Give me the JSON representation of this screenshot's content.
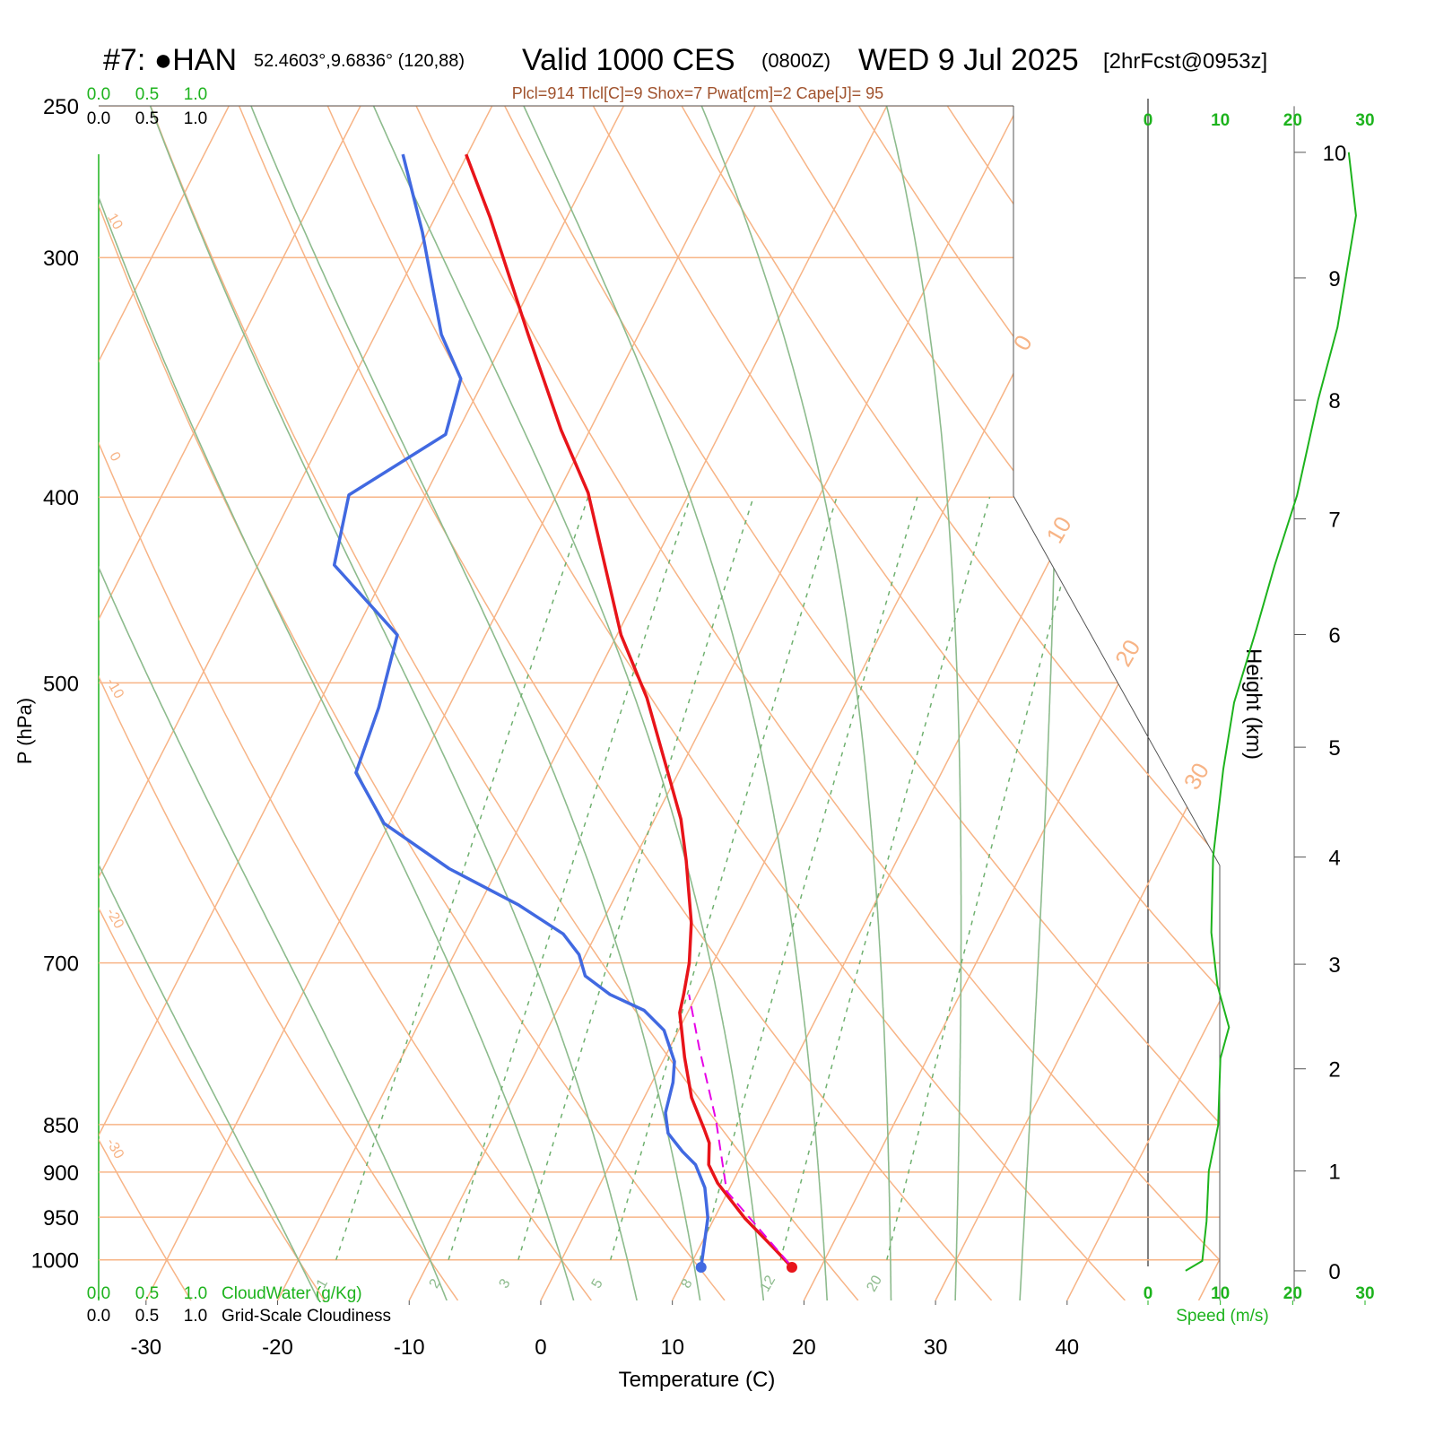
{
  "chart_data": {
    "type": "skewt",
    "title_parts": [
      "#7: ●HAN",
      "52.4603°,9.6836° (120,88)",
      "Valid 1000 CES",
      "(0800Z)",
      "WED 9 Jul 2025",
      "[2hrFcst@0953z]"
    ],
    "subtitle": "Plcl=914 Tlcl[C]=9 Shox=7 Pwat[cm]=2 Cape[J]= 95",
    "xlabel": "Temperature (C)",
    "ylabel": "P (hPa)",
    "y2label": "Height (km)",
    "xlim": [
      -33.6,
      51.6
    ],
    "xticks": [
      -30,
      -20,
      -10,
      0,
      10,
      20,
      30,
      40
    ],
    "ylim": [
      1050,
      250
    ],
    "yticks": [
      250,
      300,
      400,
      500,
      700,
      850,
      900,
      950,
      1000
    ],
    "log_y": true,
    "y2lim": [
      -0.31,
      10.36
    ],
    "y2ticks": [
      0,
      1,
      2,
      3,
      4,
      5,
      6,
      7,
      8,
      9,
      10
    ],
    "dry_adiabat_labels": [
      10,
      0,
      -10,
      -20,
      -30
    ],
    "isotherm_labels": [
      0,
      10,
      20,
      30
    ],
    "mixing_ratio_labels": [
      1,
      2,
      3,
      5,
      8,
      12,
      20
    ],
    "temperature": {
      "color": "#e8141a",
      "pressure": [
        1009,
        983,
        951,
        912,
        892,
        869,
        855,
        823,
        784,
        743,
        727,
        700,
        667,
        619,
        589,
        558,
        509,
        472,
        398,
        369,
        329,
        286,
        265
      ],
      "values": [
        17.8,
        15.4,
        12.3,
        8.9,
        7.5,
        6.7,
        5.8,
        3.6,
        1.5,
        -0.6,
        -1.0,
        -1.8,
        -3.2,
        -6.0,
        -8.0,
        -10.7,
        -15.3,
        -19.7,
        -27.7,
        -32.2,
        -38.4,
        -45.8,
        -50.1
      ]
    },
    "dewpoint": {
      "color": "#4169e1",
      "pressure": [
        1009,
        951,
        917,
        892,
        878,
        859,
        838,
        808,
        788,
        759,
        741,
        727,
        711,
        693,
        676,
        653,
        625,
        592,
        557,
        515,
        472,
        434,
        399,
        371,
        347,
        329,
        291,
        265
      ],
      "values": [
        10.9,
        9.5,
        8.1,
        6.5,
        5.0,
        3.2,
        2.2,
        1.6,
        0.9,
        -1.1,
        -3.4,
        -6.6,
        -9.2,
        -10.5,
        -12.5,
        -17.0,
        -23.7,
        -30.4,
        -34.5,
        -35.3,
        -36.7,
        -44.2,
        -45.8,
        -40.8,
        -41.8,
        -45.0,
        -50.4,
        -54.9
      ]
    },
    "parcel": {
      "color": "#e600e6",
      "pressure": [
        1004,
        921,
        845,
        776,
        727
      ],
      "values": [
        17.4,
        9.9,
        6.3,
        2.3,
        -0.6
      ]
    },
    "wind": {
      "color": "#1db31d",
      "label": "Speed (m/s)",
      "xlim": [
        0,
        30
      ],
      "xticks": [
        0,
        10,
        20,
        30
      ],
      "height_km": [
        0,
        0.1,
        0.5,
        1.0,
        1.45,
        2.1,
        2.4,
        2.8,
        3.3,
        4.0,
        4.8,
        5.4,
        6.05,
        6.6,
        7.2,
        8.0,
        8.6,
        9.5,
        10.0
      ],
      "speed": [
        5.2,
        7.5,
        8.1,
        8.4,
        9.7,
        10,
        11.2,
        9.6,
        8.75,
        9.0,
        10.4,
        11.9,
        15,
        17.5,
        20.6,
        23.5,
        26.2,
        28.75,
        27.75
      ]
    },
    "cloud_water": {
      "label": "CloudWater (g/Kg)",
      "color": "#1db31d",
      "ticks": [
        {
          "value": 0,
          "label": "0.0"
        },
        {
          "value": 0.5,
          "label": "0.5"
        },
        {
          "value": 1,
          "label": "1.0"
        }
      ]
    },
    "cloudiness": {
      "label": "Grid-Scale Cloudiness",
      "color": "#000000",
      "ticks": [
        {
          "value": 0,
          "label": "0.0"
        },
        {
          "value": 0.5,
          "label": "0.5"
        },
        {
          "value": 1,
          "label": "1.0"
        }
      ]
    }
  }
}
